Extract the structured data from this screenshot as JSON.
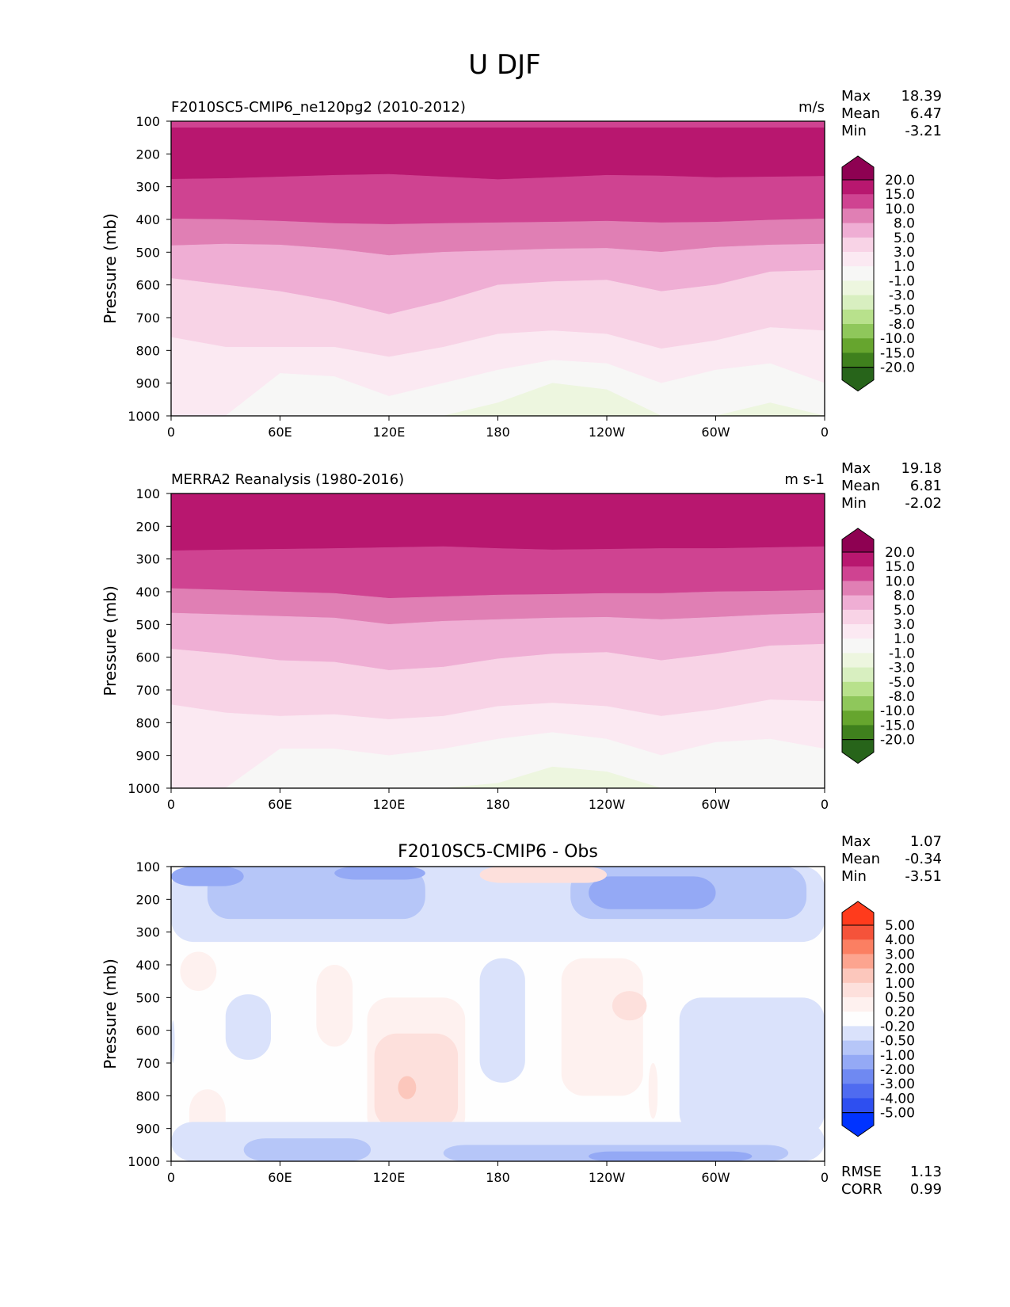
{
  "figure": {
    "title": "U DJF"
  },
  "colors": {
    "positive_cmap": [
      "#f7f7f6",
      "#fbe9f2",
      "#f8d3e6",
      "#efaed4",
      "#e07fb4",
      "#cf4391",
      "#b8176f",
      "#8e0152"
    ],
    "negative_cmap": [
      "#f7f7f6",
      "#edf6df",
      "#d8efc0",
      "#b8e18c",
      "#8fc75b",
      "#66a52e",
      "#3f801d",
      "#27641a"
    ],
    "diff_pos_cmap": [
      "#fefefe",
      "#fde0dc",
      "#fcc7bc",
      "#fca48f",
      "#fb7f62",
      "#f5533a",
      "#ff3b1c"
    ],
    "diff_neg_cmap": [
      "#fefefe",
      "#dae2fb",
      "#b6c6f8",
      "#94a9f5",
      "#6f89f2",
      "#4f6bf0",
      "#2e4ff0",
      "#0033ff"
    ]
  },
  "chart_data": [
    {
      "type": "heatmap",
      "name": "model",
      "title": "F2010SC5-CMIP6_ne120pg2 (2010-2012)",
      "units": "m/s",
      "xlabel": "",
      "ylabel": "Pressure (mb)",
      "x": [
        0,
        60,
        120,
        180,
        240,
        300,
        360
      ],
      "xticklabels": [
        "0",
        "60E",
        "120E",
        "180",
        "120W",
        "60W",
        "0"
      ],
      "xlim": [
        0,
        360
      ],
      "yticklabels": [
        "100",
        "200",
        "300",
        "400",
        "500",
        "600",
        "700",
        "800",
        "900",
        "1000"
      ],
      "ylim": [
        1000,
        100
      ],
      "stats": [
        {
          "label": "Max",
          "value": "18.39"
        },
        {
          "label": "Mean",
          "value": "6.47"
        },
        {
          "label": "Min",
          "value": "-3.21"
        }
      ],
      "colorbar_labels": [
        "20.0",
        "15.0",
        "10.0",
        "8.0",
        "5.0",
        "3.0",
        "1.0",
        "-1.0",
        "-3.0",
        "-5.0",
        "-8.0",
        "-10.0",
        "-15.0",
        "-20.0"
      ],
      "colorbar_colors": [
        "#8e0152",
        "#b8176f",
        "#cf4391",
        "#e07fb4",
        "#efaed4",
        "#f8d3e6",
        "#fbe9f2",
        "#f7f7f6",
        "#edf6df",
        "#d8efc0",
        "#b8e18c",
        "#8fc75b",
        "#66a52e",
        "#3f801d",
        "#27641a"
      ],
      "levels": [
        -20,
        -15,
        -10,
        -8,
        -5,
        -3,
        -1,
        1,
        3,
        5,
        8,
        10,
        15,
        20
      ],
      "contour_boundaries": [
        {
          "level": 15,
          "p": [
            277,
            275,
            270,
            265,
            262,
            270,
            278,
            272,
            265,
            267,
            272,
            270,
            268
          ]
        },
        {
          "level": 10,
          "p": [
            398,
            400,
            405,
            412,
            415,
            412,
            410,
            408,
            405,
            410,
            408,
            402,
            398
          ]
        },
        {
          "level": 8,
          "p": [
            480,
            475,
            478,
            490,
            510,
            500,
            495,
            490,
            488,
            500,
            485,
            478,
            475
          ]
        },
        {
          "level": 5,
          "p": [
            580,
            600,
            620,
            650,
            690,
            650,
            600,
            590,
            585,
            620,
            600,
            560,
            555
          ]
        },
        {
          "level": 3,
          "p": [
            760,
            790,
            790,
            790,
            820,
            790,
            750,
            740,
            750,
            795,
            770,
            730,
            740
          ]
        },
        {
          "level": 1,
          "p": [
            1000,
            1000,
            870,
            880,
            940,
            900,
            860,
            830,
            840,
            900,
            860,
            840,
            900
          ]
        },
        {
          "level": -1,
          "p": [
            1000,
            1000,
            1000,
            1000,
            1000,
            1000,
            960,
            900,
            920,
            1000,
            1000,
            960,
            1000
          ]
        }
      ]
    },
    {
      "type": "heatmap",
      "name": "obs",
      "title": "MERRA2 Reanalysis (1980-2016)",
      "units": "m s-1",
      "xlabel": "",
      "ylabel": "Pressure (mb)",
      "x": [
        0,
        60,
        120,
        180,
        240,
        300,
        360
      ],
      "xticklabels": [
        "0",
        "60E",
        "120E",
        "180",
        "120W",
        "60W",
        "0"
      ],
      "xlim": [
        0,
        360
      ],
      "yticklabels": [
        "100",
        "200",
        "300",
        "400",
        "500",
        "600",
        "700",
        "800",
        "900",
        "1000"
      ],
      "ylim": [
        1000,
        100
      ],
      "stats": [
        {
          "label": "Max",
          "value": "19.18"
        },
        {
          "label": "Mean",
          "value": "6.81"
        },
        {
          "label": "Min",
          "value": "-2.02"
        }
      ],
      "colorbar_labels": [
        "20.0",
        "15.0",
        "10.0",
        "8.0",
        "5.0",
        "3.0",
        "1.0",
        "-1.0",
        "-3.0",
        "-5.0",
        "-8.0",
        "-10.0",
        "-15.0",
        "-20.0"
      ],
      "colorbar_colors": [
        "#8e0152",
        "#b8176f",
        "#cf4391",
        "#e07fb4",
        "#efaed4",
        "#f8d3e6",
        "#fbe9f2",
        "#f7f7f6",
        "#edf6df",
        "#d8efc0",
        "#b8e18c",
        "#8fc75b",
        "#66a52e",
        "#3f801d",
        "#27641a"
      ],
      "levels": [
        -20,
        -15,
        -10,
        -8,
        -5,
        -3,
        -1,
        1,
        3,
        5,
        8,
        10,
        15,
        20
      ],
      "contour_boundaries": [
        {
          "level": 20,
          "p": [
            100,
            100,
            100,
            100,
            100,
            100,
            100,
            100,
            100,
            100,
            100,
            100,
            100
          ]
        },
        {
          "level": 15,
          "p": [
            275,
            272,
            270,
            268,
            265,
            262,
            268,
            272,
            270,
            268,
            268,
            265,
            262
          ]
        },
        {
          "level": 10,
          "p": [
            390,
            395,
            400,
            405,
            420,
            415,
            410,
            408,
            405,
            405,
            400,
            398,
            395
          ]
        },
        {
          "level": 8,
          "p": [
            465,
            470,
            475,
            480,
            500,
            490,
            485,
            480,
            478,
            485,
            478,
            470,
            465
          ]
        },
        {
          "level": 5,
          "p": [
            575,
            590,
            610,
            615,
            640,
            630,
            605,
            590,
            585,
            610,
            590,
            565,
            560
          ]
        },
        {
          "level": 3,
          "p": [
            745,
            770,
            780,
            775,
            790,
            780,
            750,
            740,
            750,
            780,
            760,
            730,
            735
          ]
        },
        {
          "level": 1,
          "p": [
            1000,
            1000,
            880,
            880,
            900,
            880,
            850,
            830,
            850,
            900,
            860,
            850,
            880
          ]
        },
        {
          "level": -1,
          "p": [
            1000,
            1000,
            1000,
            1000,
            1000,
            1000,
            985,
            935,
            950,
            1000,
            1000,
            1000,
            1000
          ]
        }
      ]
    },
    {
      "type": "heatmap",
      "name": "diff",
      "title": "F2010SC5-CMIP6 - Obs",
      "units": "",
      "xlabel": "",
      "ylabel": "Pressure (mb)",
      "x": [
        0,
        60,
        120,
        180,
        240,
        300,
        360
      ],
      "xticklabels": [
        "0",
        "60E",
        "120E",
        "180",
        "120W",
        "60W",
        "0"
      ],
      "xlim": [
        0,
        360
      ],
      "yticklabels": [
        "100",
        "200",
        "300",
        "400",
        "500",
        "600",
        "700",
        "800",
        "900",
        "1000"
      ],
      "ylim": [
        1000,
        100
      ],
      "stats": [
        {
          "label": "Max",
          "value": "1.07"
        },
        {
          "label": "Mean",
          "value": "-0.34"
        },
        {
          "label": "Min",
          "value": "-3.51"
        }
      ],
      "extra_stats": [
        {
          "label": "RMSE",
          "value": "1.13"
        },
        {
          "label": "CORR",
          "value": "0.99"
        }
      ],
      "colorbar_labels": [
        "5.00",
        "4.00",
        "3.00",
        "2.00",
        "1.00",
        "0.50",
        "0.20",
        "-0.20",
        "-0.50",
        "-1.00",
        "-2.00",
        "-3.00",
        "-4.00",
        "-5.00"
      ],
      "colorbar_colors": [
        "#ff3b1c",
        "#f5533a",
        "#fb7f62",
        "#fca48f",
        "#fcc7bc",
        "#fde0dc",
        "#fef1ef",
        "#fefefe",
        "#dae2fb",
        "#b6c6f8",
        "#94a9f5",
        "#6f89f2",
        "#4f6bf0",
        "#2e4ff0",
        "#0033ff"
      ],
      "levels": [
        -5,
        -4,
        -3,
        -2,
        -1,
        -0.5,
        -0.2,
        0.2,
        0.5,
        1,
        2,
        3,
        4,
        5
      ],
      "regions": [
        {
          "value": -0.35,
          "lon": [
            0,
            360
          ],
          "p": [
            100,
            330
          ]
        },
        {
          "value": -0.75,
          "lon": [
            20,
            140
          ],
          "p": [
            100,
            260
          ]
        },
        {
          "value": -0.75,
          "lon": [
            220,
            350
          ],
          "p": [
            100,
            260
          ]
        },
        {
          "value": -1.5,
          "lon": [
            0,
            40
          ],
          "p": [
            100,
            160
          ]
        },
        {
          "value": -1.5,
          "lon": [
            90,
            140
          ],
          "p": [
            100,
            140
          ]
        },
        {
          "value": -1.5,
          "lon": [
            230,
            300
          ],
          "p": [
            130,
            230
          ]
        },
        {
          "value": 0.7,
          "lon": [
            170,
            240
          ],
          "p": [
            100,
            150
          ]
        },
        {
          "value": 0.35,
          "lon": [
            5,
            25
          ],
          "p": [
            360,
            480
          ]
        },
        {
          "value": 0.35,
          "lon": [
            80,
            100
          ],
          "p": [
            400,
            650
          ]
        },
        {
          "value": 0.35,
          "lon": [
            108,
            162
          ],
          "p": [
            500,
            930
          ]
        },
        {
          "value": 0.7,
          "lon": [
            112,
            158
          ],
          "p": [
            610,
            900
          ]
        },
        {
          "value": 1.2,
          "lon": [
            125,
            135
          ],
          "p": [
            740,
            810
          ]
        },
        {
          "value": 0.35,
          "lon": [
            215,
            260
          ],
          "p": [
            380,
            800
          ]
        },
        {
          "value": 0.7,
          "lon": [
            243,
            262
          ],
          "p": [
            480,
            570
          ]
        },
        {
          "value": 0.35,
          "lon": [
            263,
            268
          ],
          "p": [
            700,
            870
          ]
        },
        {
          "value": 0.35,
          "lon": [
            10,
            30
          ],
          "p": [
            780,
            1000
          ]
        },
        {
          "value": -0.35,
          "lon": [
            30,
            55
          ],
          "p": [
            490,
            690
          ]
        },
        {
          "value": -0.35,
          "lon": [
            170,
            195
          ],
          "p": [
            380,
            760
          ]
        },
        {
          "value": -0.35,
          "lon": [
            0,
            2
          ],
          "p": [
            570,
            700
          ]
        },
        {
          "value": -0.35,
          "lon": [
            280,
            360
          ],
          "p": [
            500,
            920
          ]
        },
        {
          "value": -0.35,
          "lon": [
            0,
            360
          ],
          "p": [
            880,
            1000
          ]
        },
        {
          "value": -0.75,
          "lon": [
            40,
            110
          ],
          "p": [
            930,
            1000
          ]
        },
        {
          "value": -0.75,
          "lon": [
            150,
            340
          ],
          "p": [
            950,
            1000
          ]
        },
        {
          "value": -1.5,
          "lon": [
            230,
            320
          ],
          "p": [
            970,
            1000
          ]
        }
      ]
    }
  ]
}
